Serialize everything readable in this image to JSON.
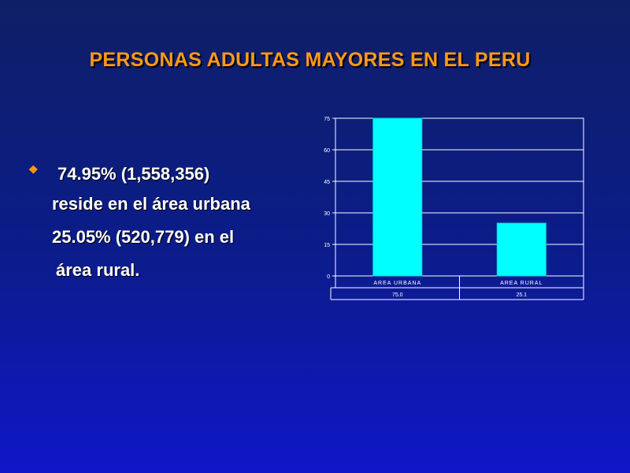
{
  "slide": {
    "title": "PERSONAS ADULTAS MAYORES EN EL PERU",
    "bullet_icon": "diamond-bullet-icon",
    "lines": [
      "74.95% (1,558,356)",
      "reside en el área urbana",
      "25.05% (520,779) en el",
      "área rural."
    ]
  },
  "chart_data": {
    "type": "bar",
    "categories": [
      "AREA URBANA",
      "AREA RURAL"
    ],
    "values": [
      75.0,
      25.1
    ],
    "table_values": [
      "75.0",
      "25.1"
    ],
    "yticks": [
      0,
      15,
      30,
      45,
      60,
      75
    ],
    "ylim": [
      0,
      75
    ],
    "grid": true,
    "bar_color": "#00ffff",
    "title": "",
    "xlabel": "",
    "ylabel": ""
  }
}
